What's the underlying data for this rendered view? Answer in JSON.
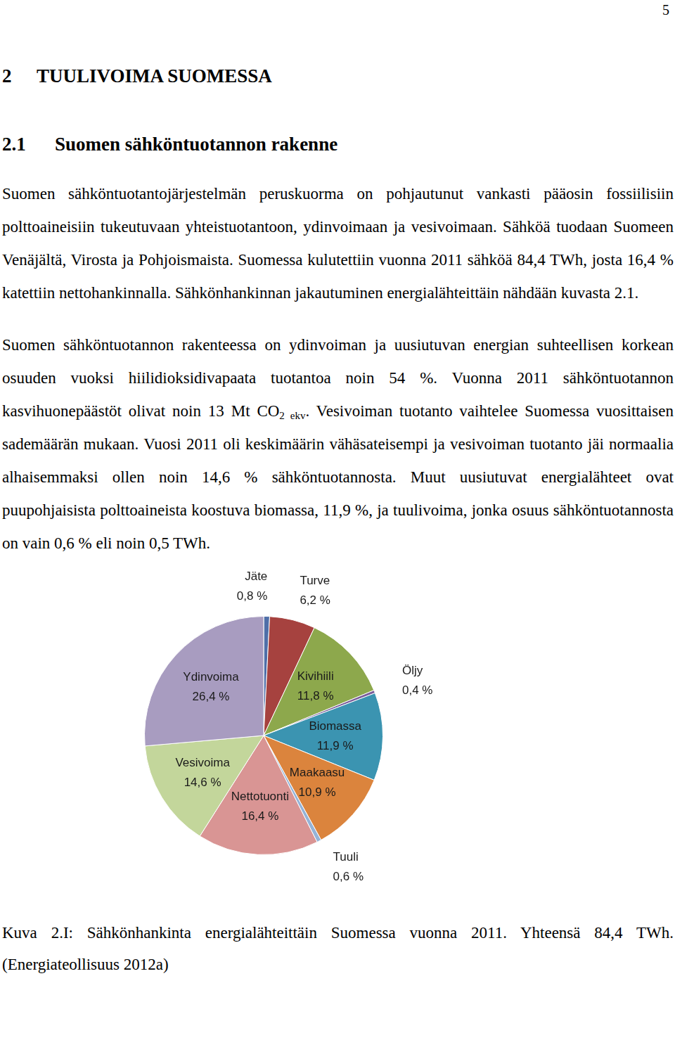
{
  "page_number": "5",
  "heading": {
    "number": "2",
    "text": "TUULIVOIMA SUOMESSA"
  },
  "subheading": {
    "number": "2.1",
    "text": "Suomen sähköntuotannon rakenne"
  },
  "paragraphs": [
    [
      {
        "text": "Suomen sähköntuotantojärjestelmän peruskuorma on pohjautunut vankasti pääosin fossiilisiin polttoaineisiin tukeutuvaan yhteistuotantoon, ydinvoimaan ja vesivoimaan. Sähköä tuodaan Suomeen Venäjältä, Virosta ja Pohjoismaista. Suomessa kulutettiin vuonna 2011 sähköä 84,4 TWh, josta 16,4 % katettiin nettohankinnalla. Sähkönhankinnan jakautuminen energialähteittäin nähdään kuvasta 2.1."
      }
    ],
    [
      {
        "text": "Suomen sähköntuotannon rakenteessa on ydinvoiman ja uusiutuvan energian suhteellisen korkean osuuden vuoksi hiilidioksidivapaata tuotantoa noin 54 %. Vuonna 2011 sähköntuotannon kasvihuonepäästöt olivat noin 13 Mt CO"
      },
      {
        "sub": "2 ekv"
      },
      {
        "text": ". Vesivoiman tuotanto vaihtelee Suomessa vuosittaisen sademäärän mukaan. Vuosi 2011 oli keskimäärin vähäsateisempi ja vesivoiman tuotanto jäi normaalia alhaisemmaksi ollen noin 14,6 % sähköntuotannosta. Muut uusiutuvat energialähteet ovat puupohjaisista polttoaineista koostuva biomassa, 11,9 %, ja tuulivoima, jonka osuus sähköntuotannosta on vain 0,6 % eli noin 0,5 TWh."
      }
    ]
  ],
  "chart_data": {
    "type": "pie",
    "categories": [
      "Jäte",
      "Turve",
      "Kivihiili",
      "Öljy",
      "Biomassa",
      "Maakaasu",
      "Tuuli",
      "Nettotuonti",
      "Vesivoima",
      "Ydinvoima"
    ],
    "values": [
      0.8,
      6.2,
      11.8,
      0.4,
      11.9,
      10.9,
      0.6,
      16.4,
      14.6,
      26.4
    ],
    "value_labels": [
      "0,8 %",
      "6,2 %",
      "11,8 %",
      "0,4 %",
      "11,9 %",
      "10,9 %",
      "0,6 %",
      "16,4 %",
      "14,6 %",
      "26,4 %"
    ],
    "colors": [
      "#4F6FA8",
      "#A6423F",
      "#8DA84C",
      "#7B5E9B",
      "#3B94B1",
      "#DB843D",
      "#95B3D7",
      "#D99594",
      "#C3D69B",
      "#A89CC0"
    ],
    "data_labels": true
  },
  "caption": "Kuva 2.I: Sähkönhankinta energialähteittäin Suomessa vuonna 2011. Yhteensä 84,4 TWh. (Energiateollisuus 2012a)"
}
